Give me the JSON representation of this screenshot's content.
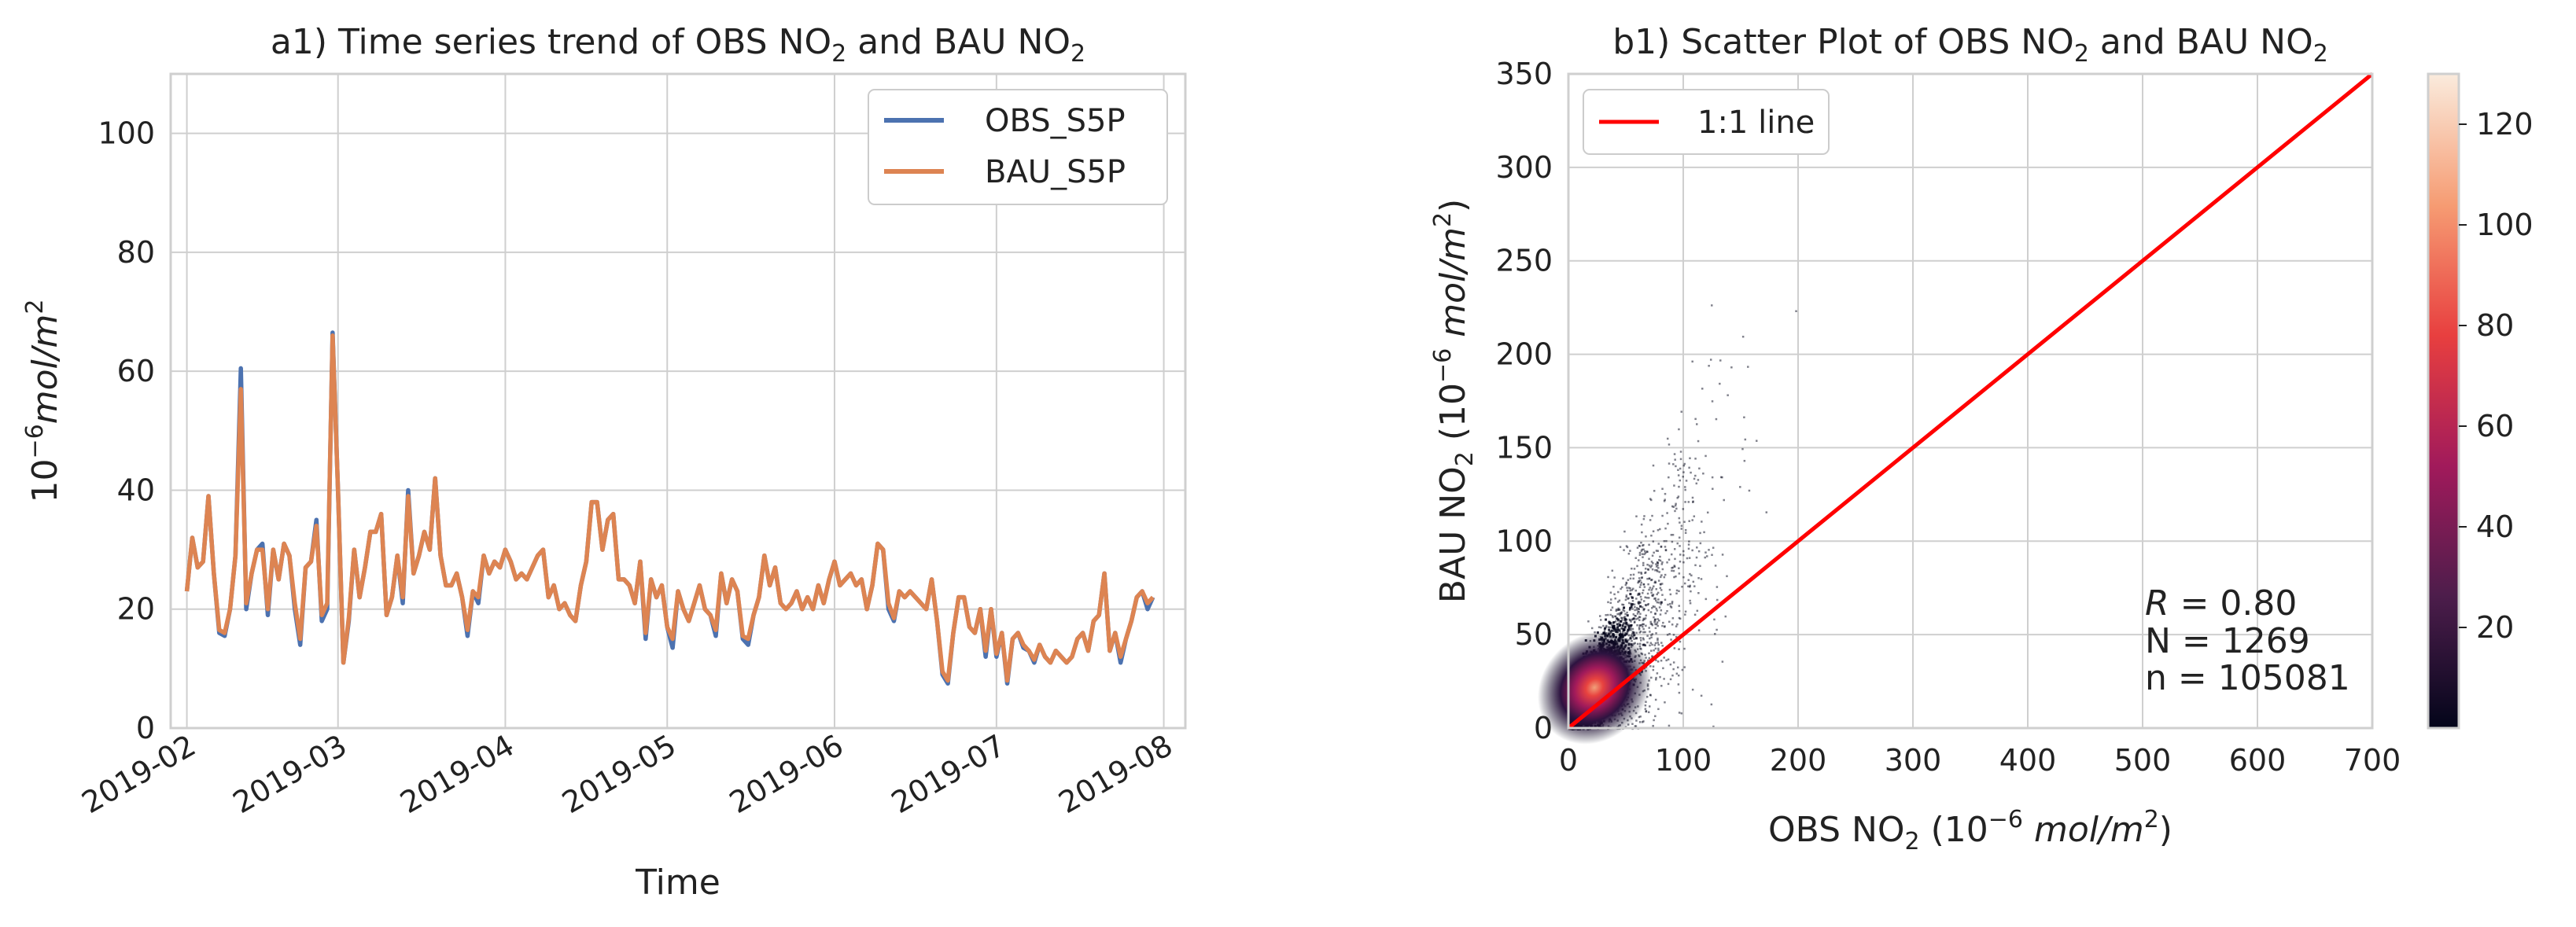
{
  "chart_data": [
    {
      "type": "line",
      "title": "a1) Time series trend of OBS NO",
      "title_sub": "2",
      "title_mid": " and BAU NO",
      "title_sub2": "2",
      "xlabel": "Time",
      "ylabel_base": "10",
      "ylabel_exp": "−6",
      "ylabel_unit": "mol/m",
      "ylabel_unit_exp": "2",
      "ylim": [
        0,
        110
      ],
      "yticks": [
        0,
        20,
        40,
        60,
        80,
        100
      ],
      "xlim": [
        "2019-01-29",
        "2019-08-05"
      ],
      "xticks": [
        "2019-02",
        "2019-03",
        "2019-04",
        "2019-05",
        "2019-06",
        "2019-07",
        "2019-08"
      ],
      "grid": true,
      "legend_position": "top-right",
      "start_date": "2019-02-01",
      "series": [
        {
          "name": "OBS_S5P",
          "color": "#4c72b0",
          "values": [
            23,
            32,
            27,
            28,
            39,
            26,
            16,
            15.5,
            20,
            29,
            60.5,
            20,
            26,
            30,
            31,
            19,
            30,
            25,
            31,
            29,
            20,
            14,
            27,
            28,
            35,
            18,
            20,
            66.5,
            40,
            11,
            18,
            30,
            22,
            27,
            33,
            33,
            36,
            19,
            22,
            29,
            21,
            40,
            26,
            29,
            33,
            30,
            42,
            29,
            24,
            24,
            26,
            22,
            15.5,
            23,
            21,
            29,
            26,
            28,
            27,
            30,
            28,
            25,
            26,
            25,
            27,
            29,
            30,
            22,
            24,
            20,
            21,
            19,
            18,
            24,
            28,
            38,
            38,
            30,
            35,
            36,
            25,
            25,
            24,
            21,
            28,
            15,
            25,
            22,
            24,
            17,
            13.5,
            23,
            20,
            18,
            21,
            24,
            20,
            19,
            15.5,
            26,
            21,
            25,
            23,
            15,
            14,
            19,
            22,
            29,
            24,
            27,
            21,
            20,
            21,
            23,
            20,
            22,
            20,
            24,
            21,
            25,
            28,
            24,
            25,
            26,
            24,
            25,
            20,
            24,
            31,
            30,
            20,
            18,
            23,
            22,
            23,
            22,
            21,
            20,
            25,
            18,
            9,
            7.5,
            16,
            22,
            22,
            17,
            16,
            20,
            12,
            20,
            12,
            16,
            7.5,
            15,
            16,
            13.5,
            13,
            11,
            14,
            12,
            11,
            13,
            12,
            11,
            12,
            15,
            16,
            13,
            18,
            19,
            26,
            13,
            16,
            11,
            15,
            18,
            22,
            23,
            20,
            22
          ]
        },
        {
          "name": "BAU_S5P",
          "color": "#dd8452",
          "values": [
            23,
            32,
            27,
            28,
            39,
            26,
            16.5,
            16,
            20,
            29,
            57,
            21,
            26,
            30,
            30,
            20,
            30,
            25,
            31,
            29,
            21,
            15,
            27,
            28,
            34,
            19,
            21,
            66,
            40,
            11,
            18.5,
            30,
            22,
            27,
            33,
            33,
            36,
            19,
            22,
            29,
            22,
            39,
            26,
            29,
            33,
            30,
            42,
            29,
            24,
            24,
            26,
            22,
            16.5,
            23,
            22,
            29,
            26,
            28,
            27,
            30,
            28,
            25,
            26,
            25,
            27,
            29,
            30,
            22,
            24,
            20,
            21,
            19,
            18,
            24,
            28,
            38,
            38,
            30,
            35,
            36,
            25,
            25,
            24,
            21,
            28,
            16,
            25,
            22,
            24,
            17,
            15,
            23,
            20,
            18,
            21,
            24,
            20,
            19,
            16.5,
            26,
            21,
            25,
            23,
            15.5,
            15,
            19,
            22,
            29,
            24,
            27,
            21,
            20,
            21,
            23,
            20,
            22,
            20,
            24,
            21,
            25,
            28,
            24,
            25,
            26,
            24,
            25,
            20,
            24,
            31,
            30,
            21,
            18.5,
            23,
            22,
            23,
            22,
            21,
            20,
            25,
            18,
            9.5,
            8,
            16,
            22,
            22,
            17,
            16,
            20,
            13,
            20,
            12.5,
            16,
            8,
            15,
            16,
            14,
            13,
            11.5,
            14,
            12,
            11,
            13,
            12,
            11,
            12,
            15,
            16,
            13,
            18,
            19,
            26,
            13,
            16,
            12,
            15,
            18,
            22,
            23,
            21,
            22
          ]
        }
      ]
    },
    {
      "type": "scatter",
      "title": "b1) Scatter Plot of OBS NO",
      "title_sub": "2",
      "title_mid": " and BAU NO",
      "title_sub2": "2",
      "xlabel_pre": "OBS NO",
      "xlabel_sub": "2",
      "xlabel_base": " (10",
      "xlabel_exp": "−6",
      "xlabel_unit": " mol/m",
      "xlabel_unit_exp": "2",
      "xlabel_close": ")",
      "ylabel_pre": "BAU NO",
      "ylabel_sub": "2",
      "ylabel_base": " (10",
      "ylabel_exp": "−6",
      "ylabel_unit": " mol/m",
      "ylabel_unit_exp": "2",
      "ylabel_close": ")",
      "xlim": [
        0,
        700
      ],
      "ylim": [
        0,
        350
      ],
      "xticks": [
        0,
        100,
        200,
        300,
        400,
        500,
        600,
        700
      ],
      "yticks": [
        0,
        50,
        100,
        150,
        200,
        250,
        300,
        350
      ],
      "grid": true,
      "legend_position": "top-left",
      "reference_line": {
        "name": "1:1 line",
        "color": "#ff0000",
        "x": [
          0,
          700
        ],
        "y": [
          0,
          350
        ]
      },
      "colorbar": {
        "ticks": [
          20,
          40,
          60,
          80,
          100,
          120
        ],
        "range": [
          0,
          130
        ],
        "colors": [
          "#03051a",
          "#4c1d4b",
          "#a11a5b",
          "#e83f3f",
          "#f69c73",
          "#faebdd"
        ]
      },
      "density_peak": {
        "x": 20,
        "y": 20,
        "count": 130
      },
      "stats": {
        "r_label": "R",
        "r_value": " = 0.80",
        "N": "N = 1269",
        "n": "n = 105081"
      }
    }
  ]
}
